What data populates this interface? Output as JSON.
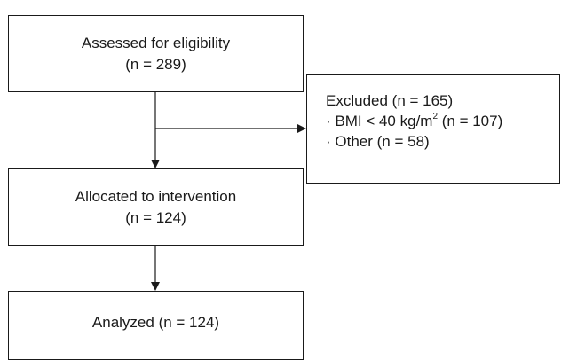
{
  "boxes": {
    "assessed": {
      "line1": "Assessed for eligibility",
      "line2": "(n = 289)"
    },
    "excluded": {
      "line1": "Excluded (n = 165)",
      "bmi_prefix": "· BMI < 40 kg/m",
      "bmi_sup": "2",
      "bmi_suffix": " (n = 107)",
      "other": "· Other (n = 58)"
    },
    "allocated": {
      "line1": "Allocated to intervention",
      "line2": "(n = 124)"
    },
    "analyzed": {
      "line1": "Analyzed (n = 124)"
    }
  },
  "colors": {
    "stroke": "#1a1a1a",
    "background": "#ffffff"
  }
}
